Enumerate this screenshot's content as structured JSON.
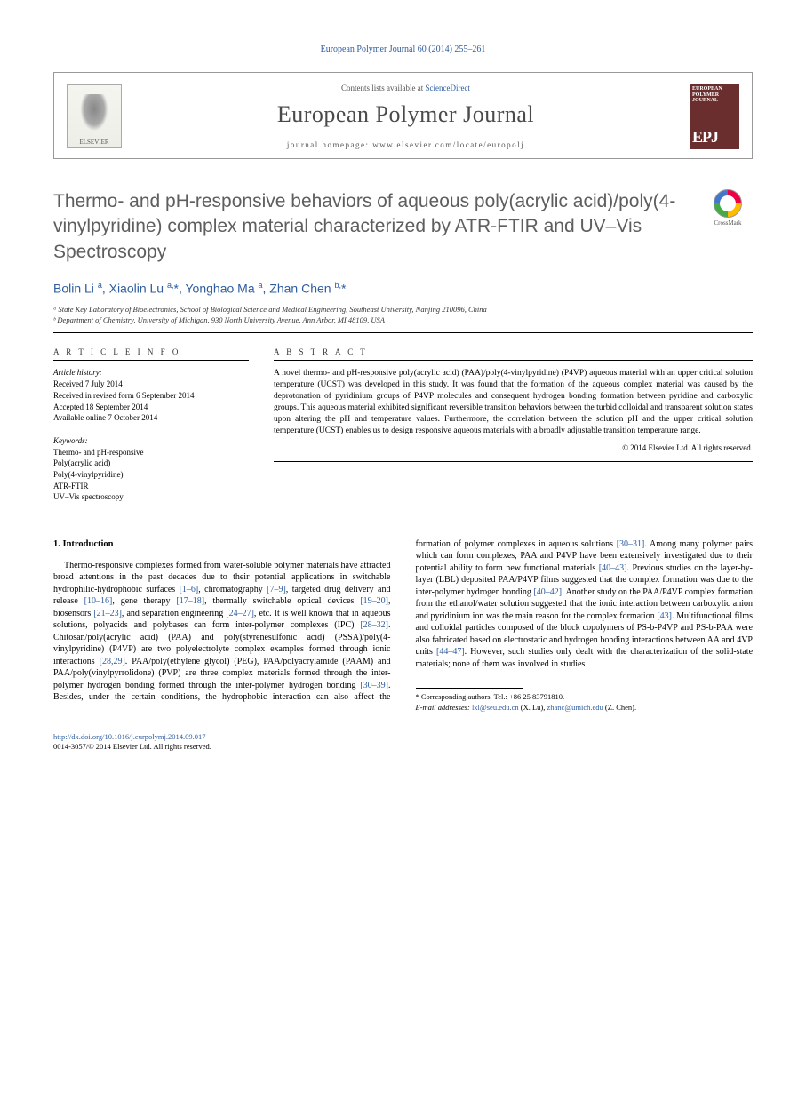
{
  "journal_ref": "European Polymer Journal 60 (2014) 255–261",
  "header": {
    "contents_prefix": "Contents lists available at ",
    "contents_link": "ScienceDirect",
    "journal_name": "European Polymer Journal",
    "homepage_prefix": "journal homepage: ",
    "homepage_url": "www.elsevier.com/locate/europolj",
    "elsevier_label": "ELSEVIER",
    "cover_title": "EUROPEAN POLYMER JOURNAL",
    "cover_epj": "EPJ"
  },
  "title": "Thermo- and pH-responsive behaviors of aqueous poly(acrylic acid)/poly(4-vinylpyridine) complex material characterized by ATR-FTIR and UV–Vis Spectroscopy",
  "crossmark_label": "CrossMark",
  "authors_html": "Bolin Li <sup>a</sup>, Xiaolin Lu <sup>a,</sup><span class='star'>*</span>, Yonghao Ma <sup>a</sup>, Zhan Chen <sup>b,</sup><span class='star'>*</span>",
  "affiliations": [
    "ᵃ State Key Laboratory of Bioelectronics, School of Biological Science and Medical Engineering, Southeast University, Nanjing 210096, China",
    "ᵇ Department of Chemistry, University of Michigan, 930 North University Avenue, Ann Arbor, MI 48109, USA"
  ],
  "info": {
    "heading": "A R T I C L E   I N F O",
    "history_heading": "Article history:",
    "history": [
      "Received 7 July 2014",
      "Received in revised form 6 September 2014",
      "Accepted 18 September 2014",
      "Available online 7 October 2014"
    ],
    "keywords_heading": "Keywords:",
    "keywords": [
      "Thermo- and pH-responsive",
      "Poly(acrylic acid)",
      "Poly(4-vinylpyridine)",
      "ATR-FTIR",
      "UV–Vis spectroscopy"
    ]
  },
  "abstract": {
    "heading": "A B S T R A C T",
    "text": "A novel thermo- and pH-responsive poly(acrylic acid) (PAA)/poly(4-vinylpyridine) (P4VP) aqueous material with an upper critical solution temperature (UCST) was developed in this study. It was found that the formation of the aqueous complex material was caused by the deprotonation of pyridinium groups of P4VP molecules and consequent hydrogen bonding formation between pyridine and carboxylic groups. This aqueous material exhibited significant reversible transition behaviors between the turbid colloidal and transparent solution states upon altering the pH and temperature values. Furthermore, the correlation between the solution pH and the upper critical solution temperature (UCST) enables us to design responsive aqueous materials with a broadly adjustable transition temperature range.",
    "copyright": "© 2014 Elsevier Ltd. All rights reserved."
  },
  "body": {
    "section_heading": "1. Introduction",
    "para1_pre": "Thermo-responsive complexes formed from water-soluble polymer materials have attracted broad attentions in the past decades due to their potential applications in switchable hydrophilic-hydrophobic surfaces ",
    "r1": "[1–6]",
    "para1_a": ", chromatography ",
    "r2": "[7–9]",
    "para1_b": ", targeted drug delivery and release ",
    "r3": "[10–16]",
    "para1_c": ", gene therapy ",
    "r4": "[17–18]",
    "para1_d": ", thermally switchable optical devices ",
    "r5": "[19–20]",
    "para1_e": ", biosensors ",
    "r6": "[21–23]",
    "para1_f": ", and separation engineering ",
    "r7": "[24–27]",
    "para1_g": ", etc. It is well known that in aqueous solutions, polyacids and polybases can form inter-polymer complexes (IPC) ",
    "r8": "[28–32]",
    "para1_h": ". Chitosan/poly(acrylic acid) (PAA) and poly(styrenesulfonic acid) (PSSA)/poly(4-vinylpyridine) (P4VP) are two polyelectrolyte complex examples formed through ionic interactions ",
    "r9": "[28,29]",
    "para1_i": ". PAA/poly(ethylene glycol) (PEG), PAA/polyacrylamide (PAAM) and PAA/poly(vinylpyrrolidone) (PVP) are three complex materials formed through the inter-polymer hydrogen bonding ",
    "r10": "[30–39]",
    "para1_j": ". Besides, under the certain conditions, the hydrophobic interaction can also affect the formation of polymer complexes in aqueous solutions ",
    "r11": "[30–31]",
    "para1_k": ". Among many polymer pairs which can form complexes, PAA and P4VP have been extensively investigated due to their potential ability to form new functional materials ",
    "r12": "[40–43]",
    "para1_l": ". Previous studies on the layer-by-layer (LBL) deposited PAA/P4VP films suggested that the complex formation was due to the inter-polymer hydrogen bonding ",
    "r13": "[40–42]",
    "para1_m": ". Another study on the PAA/P4VP complex formation from the ethanol/water solution suggested that the ionic interaction between carboxylic anion and pyridinium ion was the main reason for the complex formation ",
    "r14": "[43]",
    "para1_n": ". Multifunctional films and colloidal particles composed of the block copolymers of PS-b-P4VP and PS-b-PAA were also fabricated based on electrostatic and hydrogen bonding interactions between AA and 4VP units ",
    "r15": "[44–47]",
    "para1_o": ". However, such studies only dealt with the characterization of the solid-state materials; none of them was involved in studies"
  },
  "footnotes": {
    "corr": "* Corresponding authors. Tel.: +86 25 83791810.",
    "email_label": "E-mail addresses: ",
    "email1": "lxl@seu.edu.cn",
    "email1_who": " (X. Lu), ",
    "email2": "zhanc@umich.edu",
    "email2_who": " (Z. Chen)."
  },
  "bottom": {
    "doi": "http://dx.doi.org/10.1016/j.eurpolymj.2014.09.017",
    "issn_copy": "0014-3057/© 2014 Elsevier Ltd. All rights reserved."
  },
  "colors": {
    "link": "#2e5c9e",
    "title_gray": "#5e5e5e"
  }
}
